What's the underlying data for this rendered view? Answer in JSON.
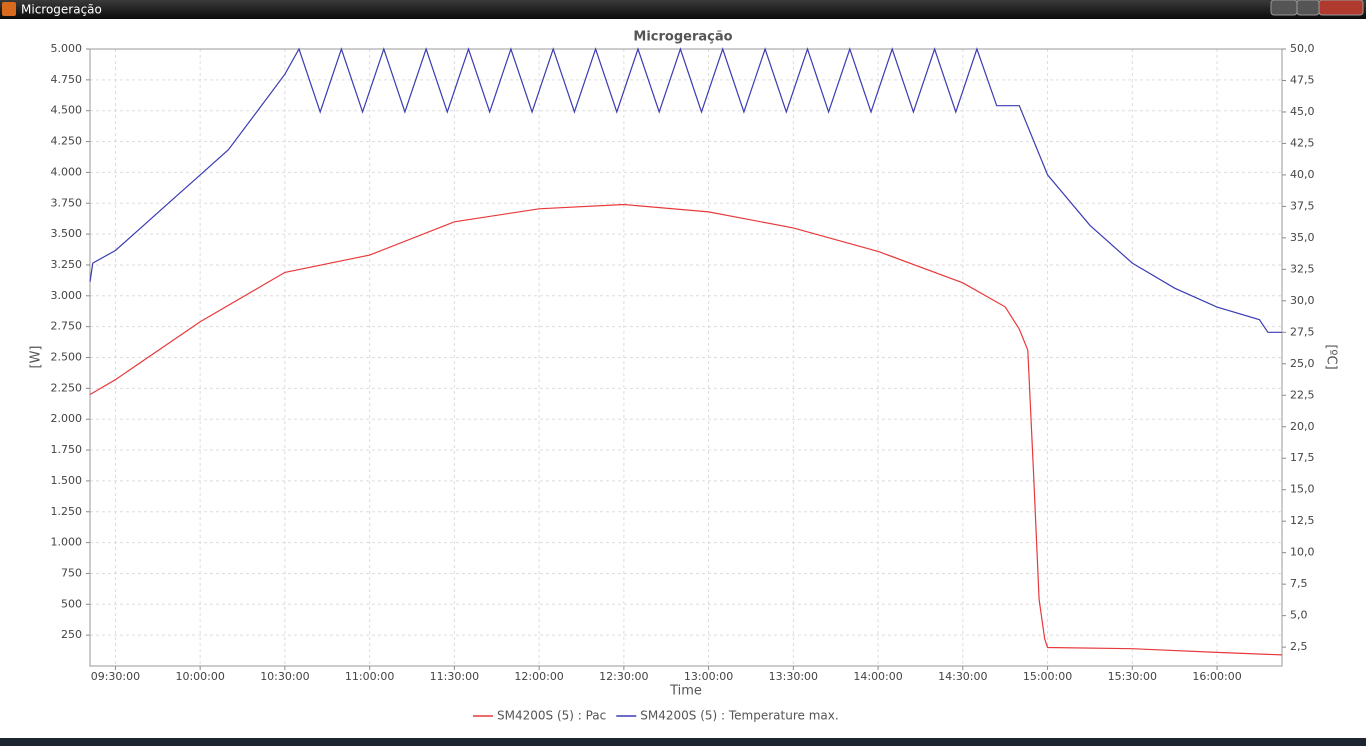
{
  "window": {
    "title": "Microgeração"
  },
  "chart_data": {
    "type": "line",
    "title": "Microgeração",
    "x_label": "Time",
    "y_label": "[W]",
    "y2_label": "[ºC]",
    "grid": true,
    "xlim": [
      "09:21:00",
      "16:23:00"
    ],
    "xticks": [
      "09:30:00",
      "10:00:00",
      "10:30:00",
      "11:00:00",
      "11:30:00",
      "12:00:00",
      "12:30:00",
      "13:00:00",
      "13:30:00",
      "14:00:00",
      "14:30:00",
      "15:00:00",
      "15:30:00",
      "16:00:00"
    ],
    "ylim": [
      0,
      5000
    ],
    "yticks": [
      250,
      500,
      750,
      {
        "value": 1000,
        "label": "1.000"
      },
      {
        "value": 1250,
        "label": "1.250"
      },
      {
        "value": 1500,
        "label": "1.500"
      },
      {
        "value": 1750,
        "label": "1.750"
      },
      {
        "value": 2000,
        "label": "2.000"
      },
      {
        "value": 2250,
        "label": "2.250"
      },
      {
        "value": 2500,
        "label": "2.500"
      },
      {
        "value": 2750,
        "label": "2.750"
      },
      {
        "value": 3000,
        "label": "3.000"
      },
      {
        "value": 3250,
        "label": "3.250"
      },
      {
        "value": 3500,
        "label": "3.500"
      },
      {
        "value": 3750,
        "label": "3.750"
      },
      {
        "value": 4000,
        "label": "4.000"
      },
      {
        "value": 4250,
        "label": "4.250"
      },
      {
        "value": 4500,
        "label": "4.500"
      },
      {
        "value": 4750,
        "label": "4.750"
      },
      {
        "value": 5000,
        "label": "5.000"
      }
    ],
    "y2lim": [
      1,
      50
    ],
    "y2ticks": [
      {
        "value": 2.5,
        "label": "2,5"
      },
      {
        "value": 5,
        "label": "5,0"
      },
      {
        "value": 7.5,
        "label": "7,5"
      },
      {
        "value": 10,
        "label": "10,0"
      },
      {
        "value": 12.5,
        "label": "12,5"
      },
      {
        "value": 15,
        "label": "15,0"
      },
      {
        "value": 17.5,
        "label": "17,5"
      },
      {
        "value": 20,
        "label": "20,0"
      },
      {
        "value": 22.5,
        "label": "22,5"
      },
      {
        "value": 25,
        "label": "25,0"
      },
      {
        "value": 27.5,
        "label": "27,5"
      },
      {
        "value": 30,
        "label": "30,0"
      },
      {
        "value": 32.5,
        "label": "32,5"
      },
      {
        "value": 35,
        "label": "35,0"
      },
      {
        "value": 37.5,
        "label": "37,5"
      },
      {
        "value": 40,
        "label": "40,0"
      },
      {
        "value": 42.5,
        "label": "42,5"
      },
      {
        "value": 45,
        "label": "45,0"
      },
      {
        "value": 47.5,
        "label": "47,5"
      },
      {
        "value": 50,
        "label": "50,0"
      }
    ],
    "series": [
      {
        "name": "SM4200S (5) : Pac",
        "color": "#e8393b",
        "x": [
          "09:21:00",
          "09:30:00",
          "10:00:00",
          "10:30:00",
          "11:00:00",
          "11:30:00",
          "12:00:00",
          "12:30:00",
          "13:00:00",
          "13:30:00",
          "14:00:00",
          "14:30:00",
          "14:45:00",
          "14:50:00",
          "14:53:00",
          "14:55:00",
          "14:57:00",
          "14:59:00",
          "15:00:00",
          "15:30:00",
          "16:00:00",
          "16:23:00"
        ],
        "values": [
          2200,
          2320,
          2790,
          3190,
          3330,
          3600,
          3705,
          3740,
          3680,
          3550,
          3360,
          3105,
          2910,
          2730,
          2560,
          1590,
          540,
          220,
          150,
          140,
          110,
          90
        ]
      },
      {
        "name": "SM4200S (5) : Temperature max.",
        "color": "#3c3cb4",
        "axis": "y2",
        "x": [
          "09:21:00",
          "09:22:00",
          "09:30:00",
          "09:40:00",
          "09:50:00",
          "10:00:00",
          "10:10:00",
          "10:20:00",
          "10:30:00",
          "10:35:00",
          "10:42:30",
          "10:50:00",
          "10:57:30",
          "11:05:00",
          "11:12:30",
          "11:20:00",
          "11:27:30",
          "11:35:00",
          "11:42:30",
          "11:50:00",
          "11:57:30",
          "12:05:00",
          "12:12:30",
          "12:20:00",
          "12:27:30",
          "12:35:00",
          "12:42:30",
          "12:50:00",
          "12:57:30",
          "13:05:00",
          "13:12:30",
          "13:20:00",
          "13:27:30",
          "13:35:00",
          "13:42:30",
          "13:50:00",
          "13:57:30",
          "14:05:00",
          "14:12:30",
          "14:20:00",
          "14:27:30",
          "14:35:00",
          "14:42:00",
          "14:50:00",
          "15:00:00",
          "15:15:00",
          "15:30:00",
          "15:45:00",
          "16:00:00",
          "16:15:00",
          "16:18:00",
          "16:23:00"
        ],
        "values": [
          31.5,
          33,
          34,
          36,
          38,
          40,
          42,
          45,
          48,
          50,
          45,
          50,
          45,
          50,
          45,
          50,
          45,
          50,
          45,
          50,
          45,
          50,
          45,
          50,
          45,
          50,
          45,
          50,
          45,
          50,
          45,
          50,
          45,
          50,
          45,
          50,
          45,
          50,
          45,
          50,
          45,
          50,
          45.5,
          45.5,
          40,
          36,
          33,
          31,
          29.5,
          28.5,
          27.5,
          27.5
        ]
      }
    ]
  }
}
